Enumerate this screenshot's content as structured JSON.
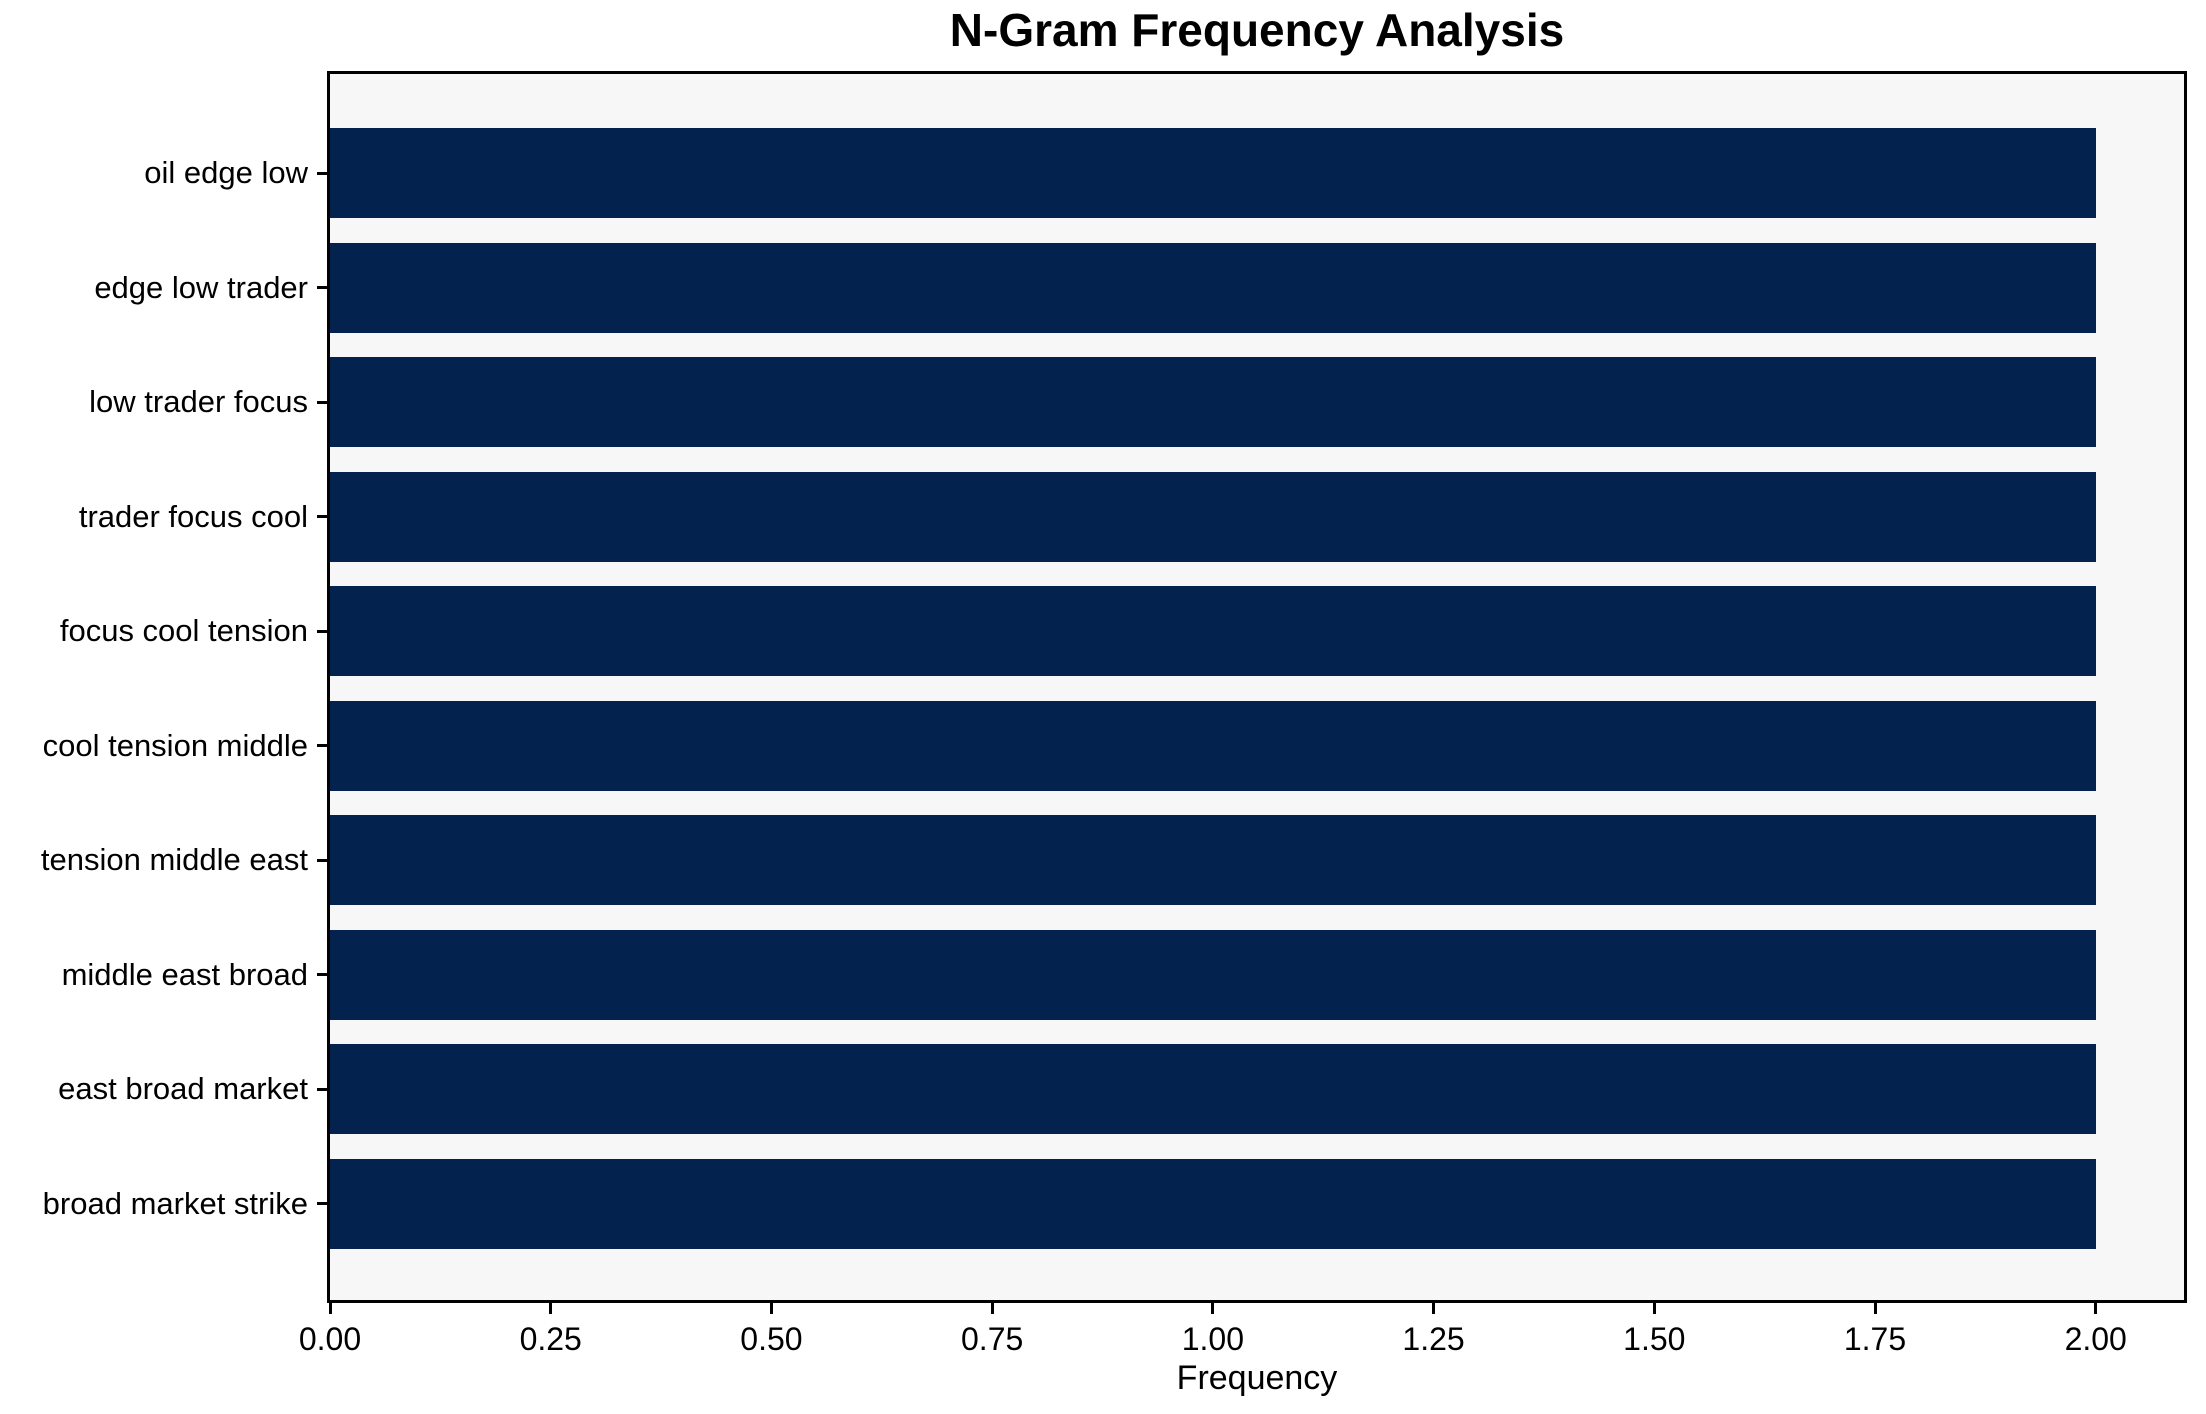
{
  "chart_data": {
    "type": "bar",
    "orientation": "horizontal",
    "title": "N-Gram Frequency Analysis",
    "xlabel": "Frequency",
    "ylabel": "",
    "categories": [
      "oil edge low",
      "edge low trader",
      "low trader focus",
      "trader focus cool",
      "focus cool tension",
      "cool tension middle",
      "tension middle east",
      "middle east broad",
      "east broad market",
      "broad market strike"
    ],
    "values": [
      2,
      2,
      2,
      2,
      2,
      2,
      2,
      2,
      2,
      2
    ],
    "xlim": [
      0,
      2.1
    ],
    "xticks": [
      0,
      0.25,
      0.5,
      0.75,
      1.0,
      1.25,
      1.5,
      1.75,
      2.0
    ],
    "xtick_labels": [
      "0.00",
      "0.25",
      "0.50",
      "0.75",
      "1.00",
      "1.25",
      "1.50",
      "1.75",
      "2.00"
    ],
    "grid": false,
    "legend": null,
    "bar_color": "#03234e",
    "plot_background": "#f7f7f7",
    "figure_background": "#ffffff",
    "text_color": "#000000"
  }
}
